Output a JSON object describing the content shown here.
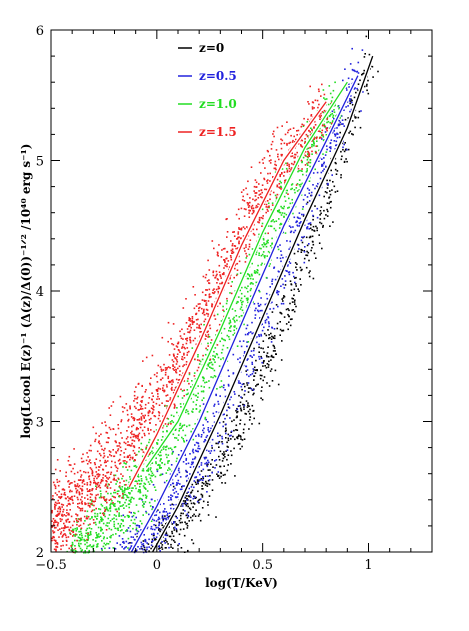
{
  "chart_data": {
    "type": "scatter",
    "title": "",
    "xlabel": "log(T/KeV)",
    "ylabel": "log(Lcool E(z)⁻¹ (Δ(z)/Δ(0))⁻¹ᐟ² /10⁴⁰ erg s⁻¹)",
    "xlim": [
      -0.5,
      1.3
    ],
    "ylim": [
      2,
      6
    ],
    "x_ticks": [
      -0.5,
      0,
      0.5,
      1
    ],
    "x_tick_labels": [
      "−0.5",
      "0",
      "0.5",
      "1"
    ],
    "y_ticks": [
      2,
      3,
      4,
      5,
      6
    ],
    "y_tick_labels": [
      "2",
      "3",
      "4",
      "5",
      "6"
    ],
    "legend_position": "top-left",
    "series": [
      {
        "name": "z=0",
        "color": "#000000",
        "cloud_centerline": [
          [
            0.0,
            2.0
          ],
          [
            0.3,
            2.7
          ],
          [
            0.55,
            3.6
          ],
          [
            0.8,
            4.7
          ],
          [
            1.0,
            5.8
          ]
        ],
        "cloud_spread": 0.12,
        "fit_line": [
          [
            -0.02,
            2.0
          ],
          [
            0.1,
            2.35
          ],
          [
            0.3,
            3.05
          ],
          [
            0.5,
            3.8
          ],
          [
            0.7,
            4.55
          ],
          [
            0.9,
            5.25
          ],
          [
            1.02,
            5.8
          ]
        ]
      },
      {
        "name": "z=0.5",
        "color": "#2222dd",
        "cloud_centerline": [
          [
            -0.1,
            2.0
          ],
          [
            0.2,
            2.7
          ],
          [
            0.45,
            3.6
          ],
          [
            0.7,
            4.6
          ],
          [
            0.95,
            5.7
          ]
        ],
        "cloud_spread": 0.13,
        "fit_line": [
          [
            -0.12,
            2.0
          ],
          [
            0.0,
            2.35
          ],
          [
            0.2,
            3.0
          ],
          [
            0.4,
            3.75
          ],
          [
            0.6,
            4.5
          ],
          [
            0.8,
            5.15
          ],
          [
            0.95,
            5.65
          ]
        ]
      },
      {
        "name": "z=1.0",
        "color": "#22dd22",
        "cloud_centerline": [
          [
            -0.25,
            2.2
          ],
          [
            0.05,
            2.8
          ],
          [
            0.3,
            3.6
          ],
          [
            0.55,
            4.5
          ],
          [
            0.85,
            5.5
          ]
        ],
        "cloud_spread": 0.14,
        "fit_line": [
          [
            -0.05,
            2.65
          ],
          [
            0.1,
            3.0
          ],
          [
            0.3,
            3.7
          ],
          [
            0.5,
            4.45
          ],
          [
            0.7,
            5.1
          ],
          [
            0.9,
            5.6
          ]
        ]
      },
      {
        "name": "z=1.5",
        "color": "#ee2222",
        "cloud_centerline": [
          [
            -0.45,
            2.3
          ],
          [
            -0.2,
            2.7
          ],
          [
            0.05,
            3.3
          ],
          [
            0.3,
            4.1
          ],
          [
            0.55,
            4.9
          ],
          [
            0.8,
            5.4
          ]
        ],
        "cloud_spread": 0.17,
        "fit_line": [
          [
            -0.13,
            2.5
          ],
          [
            0.0,
            2.9
          ],
          [
            0.2,
            3.6
          ],
          [
            0.4,
            4.35
          ],
          [
            0.6,
            5.0
          ],
          [
            0.8,
            5.45
          ]
        ]
      }
    ]
  }
}
